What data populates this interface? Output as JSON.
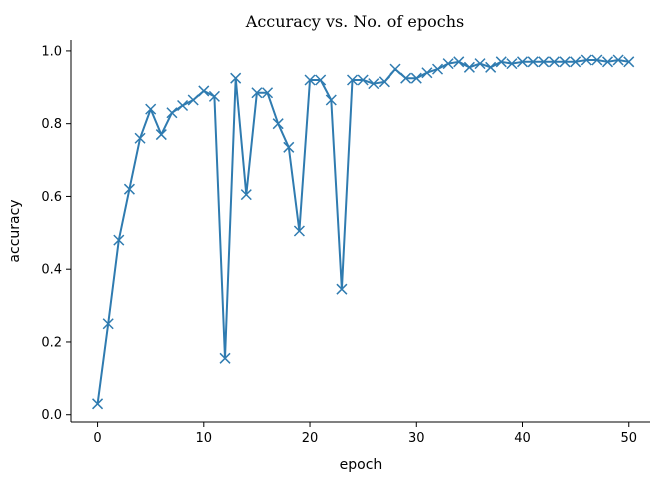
{
  "chart_data": {
    "type": "line",
    "title": "Accuracy vs. No. of epochs",
    "xlabel": "epoch",
    "ylabel": "accuracy",
    "xlim": [
      -2.5,
      52
    ],
    "ylim": [
      -0.02,
      1.03
    ],
    "xticks": [
      0,
      10,
      20,
      30,
      40,
      50
    ],
    "yticks": [
      0.0,
      0.2,
      0.4,
      0.6,
      0.8,
      1.0
    ],
    "xtick_labels": [
      "0",
      "10",
      "20",
      "30",
      "40",
      "50"
    ],
    "ytick_labels": [
      "0.0",
      "0.2",
      "0.4",
      "0.6",
      "0.8",
      "1.0"
    ],
    "grid": false,
    "marker": "x",
    "color": "#2f7bb0",
    "series": [
      {
        "x": [
          0,
          1,
          2,
          3,
          4,
          5,
          6,
          7,
          8,
          9,
          10,
          11,
          12,
          13,
          14,
          15,
          16,
          17,
          18,
          19,
          20,
          21,
          22,
          23,
          24,
          25,
          26,
          27,
          28,
          29,
          30,
          31,
          32,
          33,
          34,
          35,
          36,
          37,
          38,
          39,
          40,
          41,
          42,
          43,
          44,
          45,
          46,
          47,
          48,
          49,
          50
        ],
        "values": [
          0.03,
          0.25,
          0.48,
          0.62,
          0.76,
          0.84,
          0.77,
          0.83,
          0.85,
          0.865,
          0.89,
          0.875,
          0.155,
          0.925,
          0.605,
          0.885,
          0.885,
          0.8,
          0.735,
          0.505,
          0.92,
          0.92,
          0.865,
          0.345,
          0.92,
          0.92,
          0.91,
          0.915,
          0.95,
          0.925,
          0.925,
          0.94,
          0.95,
          0.965,
          0.97,
          0.955,
          0.965,
          0.955,
          0.97,
          0.965,
          0.97,
          0.97,
          0.97,
          0.97,
          0.97,
          0.97,
          0.975,
          0.975,
          0.97,
          0.975,
          0.97
        ]
      }
    ]
  }
}
